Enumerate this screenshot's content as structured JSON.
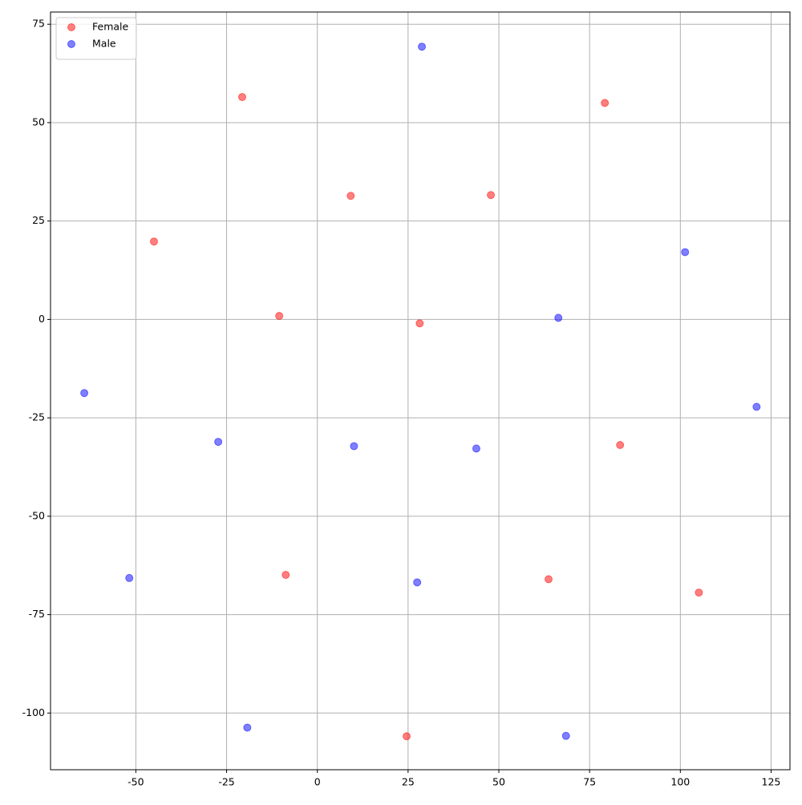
{
  "chart_data": {
    "type": "scatter",
    "series": [
      {
        "name": "Female",
        "color": "#ff0000",
        "x": [
          -20.7,
          79.2,
          9.2,
          47.8,
          -45.0,
          -10.5,
          28.2,
          83.4,
          -8.7,
          63.7,
          105.1,
          24.6
        ],
        "y": [
          56.5,
          55.0,
          31.4,
          31.6,
          19.8,
          0.9,
          -1.0,
          -31.9,
          -64.9,
          -66.0,
          -69.4,
          -105.9
        ]
      },
      {
        "name": "Male",
        "color": "#0000ff",
        "x": [
          28.8,
          101.3,
          66.4,
          -64.2,
          121.0,
          -27.3,
          10.1,
          43.8,
          -51.8,
          27.5,
          -19.3,
          68.5
        ],
        "y": [
          69.3,
          17.1,
          0.4,
          -18.7,
          -22.2,
          -31.1,
          -32.2,
          -32.8,
          -65.7,
          -66.8,
          -103.7,
          -105.8
        ]
      }
    ],
    "xlim": [
      -73.5,
      130.2
    ],
    "ylim": [
      -114.4,
      78.1
    ],
    "xticks": [
      -50,
      -25,
      0,
      25,
      50,
      75,
      100,
      125
    ],
    "yticks": [
      -100,
      -75,
      -50,
      -25,
      0,
      25,
      50,
      75
    ],
    "grid": true,
    "legend": "upper left",
    "alpha": 0.5
  }
}
